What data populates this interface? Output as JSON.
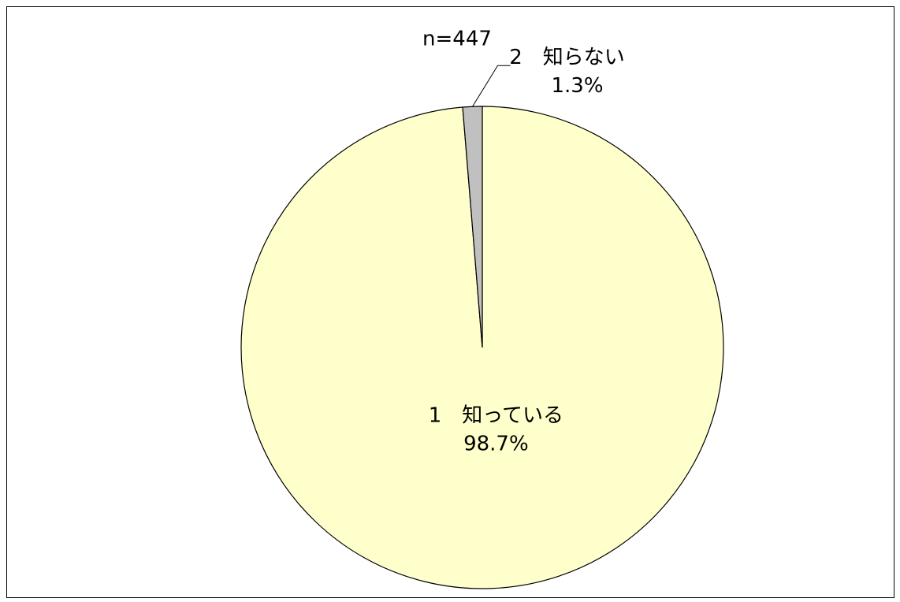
{
  "chart_data": {
    "type": "pie",
    "subtitle": "n=447",
    "categories": [
      "1　知っている",
      "2　知らない"
    ],
    "values": [
      98.7,
      1.3
    ],
    "value_labels": [
      "98.7%",
      "1.3%"
    ],
    "colors": [
      "#ffffcc",
      "#c0c0c0"
    ]
  }
}
